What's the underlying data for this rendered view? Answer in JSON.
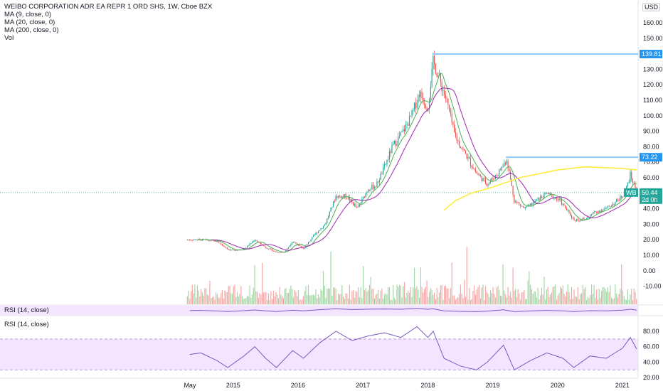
{
  "legend": {
    "title": "WEIBO CORPORATION ADR EA REPR 1 ORD SHS, 1W, Cboe BZX",
    "ma9": "MA (9, close, 0)",
    "ma20": "MA (20, close, 0)",
    "ma200": "MA (200, close, 0)",
    "vol": "Vol"
  },
  "currency": "USD",
  "rsi_label_1": "RSI (14, close)",
  "rsi_label_2": "RSI (14, close)",
  "chart_data": {
    "type": "candlestick",
    "symbol": "WB",
    "timeframe": "1W",
    "price_axis": {
      "ticks": [
        160,
        150,
        140,
        130,
        120,
        110,
        100,
        90,
        80,
        70,
        60,
        50,
        40,
        30,
        20,
        10,
        0,
        -10
      ],
      "labels": [
        "160.00",
        "150.00",
        "140.00",
        "130.00",
        "120.00",
        "110.00",
        "100.00",
        "90.00",
        "80.00",
        "70.00",
        "60.00",
        "50.00",
        "40.00",
        "30.00",
        "20.00",
        "10.00",
        "0.00",
        "-10.00"
      ]
    },
    "rsi_axis": {
      "ticks": [
        80,
        60,
        40,
        20
      ],
      "labels": [
        "80.00",
        "60.00",
        "40.00",
        "20.00"
      ],
      "band": [
        30,
        70
      ]
    },
    "time_axis": {
      "labels": [
        "May",
        "2015",
        "2016",
        "2017",
        "2018",
        "2019",
        "2020",
        "2021"
      ],
      "dates": [
        "2014-05",
        "2015-01",
        "2016-01",
        "2017-01",
        "2018-01",
        "2019-01",
        "2020-01",
        "2021-01"
      ]
    },
    "markers": [
      {
        "label": "139.81",
        "value": 139.81,
        "color": "#2196f3"
      },
      {
        "label": "73.22",
        "value": 73.22,
        "color": "#2196f3"
      },
      {
        "label": "50.44",
        "value": 50.44,
        "color": "#26a69a"
      },
      {
        "label": "WB",
        "color": "#26a69a"
      },
      {
        "label": "2d 0h",
        "color": "#26a69a"
      }
    ],
    "close_path": [
      [
        "2014-04-17",
        20
      ],
      [
        "2014-07-01",
        20
      ],
      [
        "2014-10-01",
        19
      ],
      [
        "2014-12-15",
        13
      ],
      [
        "2015-03-01",
        14
      ],
      [
        "2015-05-01",
        20
      ],
      [
        "2015-07-01",
        15
      ],
      [
        "2015-09-01",
        12
      ],
      [
        "2015-10-15",
        12
      ],
      [
        "2015-12-01",
        19
      ],
      [
        "2016-02-01",
        14
      ],
      [
        "2016-04-01",
        23
      ],
      [
        "2016-06-01",
        30
      ],
      [
        "2016-08-01",
        48
      ],
      [
        "2016-10-01",
        48
      ],
      [
        "2016-12-01",
        40
      ],
      [
        "2017-02-01",
        53
      ],
      [
        "2017-03-15",
        55
      ],
      [
        "2017-05-01",
        67
      ],
      [
        "2017-06-15",
        80
      ],
      [
        "2017-08-15",
        90
      ],
      [
        "2017-10-01",
        100
      ],
      [
        "2017-11-15",
        115
      ],
      [
        "2018-01-01",
        105
      ],
      [
        "2018-02-01",
        135
      ],
      [
        "2018-03-01",
        125
      ],
      [
        "2018-04-15",
        110
      ],
      [
        "2018-06-01",
        87
      ],
      [
        "2018-08-01",
        75
      ],
      [
        "2018-10-01",
        63
      ],
      [
        "2018-12-01",
        56
      ],
      [
        "2019-02-01",
        63
      ],
      [
        "2019-03-20",
        72
      ],
      [
        "2019-05-01",
        45
      ],
      [
        "2019-07-01",
        40
      ],
      [
        "2019-09-01",
        45
      ],
      [
        "2019-11-01",
        50
      ],
      [
        "2020-01-15",
        45
      ],
      [
        "2020-04-01",
        33
      ],
      [
        "2020-06-01",
        33
      ],
      [
        "2020-08-01",
        38
      ],
      [
        "2020-10-01",
        40
      ],
      [
        "2020-12-01",
        45
      ],
      [
        "2021-01-15",
        50
      ],
      [
        "2021-02-15",
        62
      ],
      [
        "2021-03-20",
        50.44
      ]
    ],
    "ma200_path": [
      [
        "2018-04-01",
        39
      ],
      [
        "2018-06-01",
        45
      ],
      [
        "2018-09-01",
        50
      ],
      [
        "2019-01-01",
        54
      ],
      [
        "2019-06-01",
        60
      ],
      [
        "2020-01-01",
        65
      ],
      [
        "2020-06-01",
        67
      ],
      [
        "2021-01-01",
        66
      ],
      [
        "2021-03-20",
        65
      ]
    ],
    "rsi_path": [
      [
        "2014-05-01",
        50
      ],
      [
        "2014-07-01",
        52
      ],
      [
        "2014-10-01",
        42
      ],
      [
        "2014-12-01",
        33
      ],
      [
        "2015-03-01",
        48
      ],
      [
        "2015-05-01",
        60
      ],
      [
        "2015-07-01",
        45
      ],
      [
        "2015-09-01",
        33
      ],
      [
        "2015-12-01",
        55
      ],
      [
        "2016-02-01",
        45
      ],
      [
        "2016-05-01",
        65
      ],
      [
        "2016-08-01",
        80
      ],
      [
        "2016-11-01",
        68
      ],
      [
        "2017-02-01",
        74
      ],
      [
        "2017-05-01",
        78
      ],
      [
        "2017-08-01",
        72
      ],
      [
        "2017-11-01",
        86
      ],
      [
        "2018-01-01",
        72
      ],
      [
        "2018-02-01",
        80
      ],
      [
        "2018-04-01",
        45
      ],
      [
        "2018-07-01",
        35
      ],
      [
        "2018-10-01",
        30
      ],
      [
        "2018-12-01",
        40
      ],
      [
        "2019-03-01",
        62
      ],
      [
        "2019-05-01",
        30
      ],
      [
        "2019-08-01",
        42
      ],
      [
        "2019-11-01",
        52
      ],
      [
        "2020-02-01",
        45
      ],
      [
        "2020-04-01",
        33
      ],
      [
        "2020-07-01",
        48
      ],
      [
        "2020-10-01",
        45
      ],
      [
        "2021-01-01",
        58
      ],
      [
        "2021-02-15",
        72
      ],
      [
        "2021-03-20",
        57
      ]
    ]
  },
  "colors": {
    "up": "#26a69a",
    "down": "#ef5350",
    "ma9": "#4caf50",
    "ma20": "#9c27b0",
    "ma200": "#ffeb3b",
    "rsi": "#7e57c2",
    "rsiband": "#f3e5ff",
    "marker": "#2196f3"
  }
}
